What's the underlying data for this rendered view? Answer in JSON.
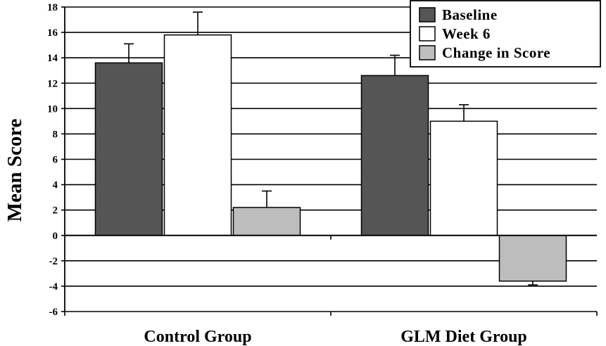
{
  "chart_data": {
    "type": "bar",
    "title": "",
    "xlabel": "",
    "ylabel": "Mean Score",
    "categories": [
      "Control Group",
      "GLM Diet Group"
    ],
    "series": [
      {
        "name": "Baseline",
        "values": [
          13.6,
          12.6
        ],
        "errors": [
          1.5,
          1.6
        ],
        "color": "#555555"
      },
      {
        "name": "Week 6",
        "values": [
          15.8,
          9.0
        ],
        "errors": [
          1.8,
          1.3
        ],
        "color": "#ffffff"
      },
      {
        "name": "Change in Score",
        "values": [
          2.2,
          -3.6
        ],
        "errors": [
          1.3,
          0.3
        ],
        "color": "#bdbdbd"
      }
    ],
    "ylim": [
      -6,
      18
    ],
    "yticks": [
      -6,
      -4,
      -2,
      0,
      2,
      4,
      6,
      8,
      10,
      12,
      14,
      16,
      18
    ],
    "grid": true,
    "legend_position": "top-right"
  }
}
